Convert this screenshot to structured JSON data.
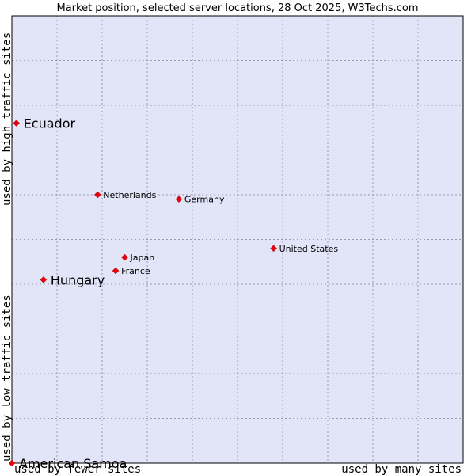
{
  "chart_data": {
    "type": "scatter",
    "title": "Market position, selected server locations, 28 Oct 2025, W3Techs.com",
    "xlabel_left": "used by fewer sites",
    "xlabel_right": "used by many sites",
    "ylabel_bottom": "used by low traffic sites",
    "ylabel_top": "used by high traffic sites",
    "xlim": [
      0,
      100
    ],
    "ylim": [
      0,
      100
    ],
    "grid": true,
    "colors": {
      "plot_bg": "#e2e4f8",
      "point": "#e8000b",
      "frame": "#000000"
    },
    "points": [
      {
        "label": "Ecuador",
        "x": 1,
        "y": 76,
        "size": "large"
      },
      {
        "label": "Netherlands",
        "x": 19,
        "y": 60,
        "size": "small"
      },
      {
        "label": "Germany",
        "x": 37,
        "y": 59,
        "size": "small"
      },
      {
        "label": "United States",
        "x": 58,
        "y": 48,
        "size": "small"
      },
      {
        "label": "Japan",
        "x": 25,
        "y": 46,
        "size": "small"
      },
      {
        "label": "France",
        "x": 23,
        "y": 43,
        "size": "small"
      },
      {
        "label": "Hungary",
        "x": 7,
        "y": 41,
        "size": "large"
      },
      {
        "label": "American Samoa",
        "x": 0,
        "y": 0,
        "size": "large"
      }
    ]
  }
}
